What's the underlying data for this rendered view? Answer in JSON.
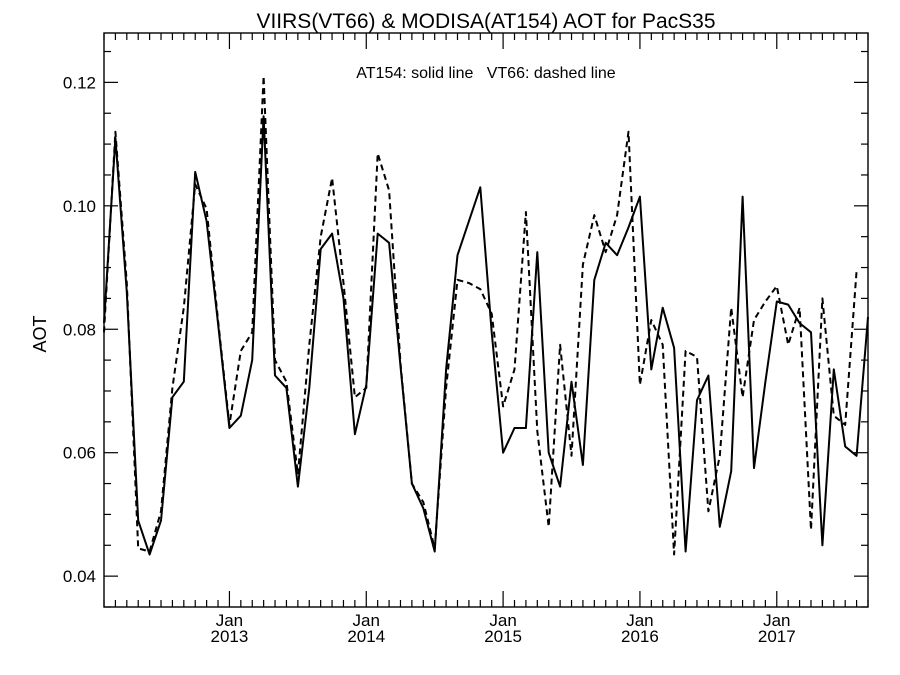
{
  "chart_data": {
    "type": "line",
    "title": "VIIRS(VT66) & MODISA(AT154)  AOT for PacS35",
    "annotation": "AT154: solid line   VT66: dashed line",
    "ylabel": "AOT",
    "xlabel": "",
    "ylim": [
      0.035,
      0.128
    ],
    "xlim": [
      "2012-02-01",
      "2017-09-01"
    ],
    "yticks": [
      0.04,
      0.06,
      0.08,
      0.1,
      0.12
    ],
    "ytick_labels": [
      "0.04",
      "0.06",
      "0.08",
      "0.10",
      "0.12"
    ],
    "xticks": [
      {
        "month": "Jan",
        "year": "2013",
        "date": "2013-01-01"
      },
      {
        "month": "Jan",
        "year": "2014",
        "date": "2014-01-01"
      },
      {
        "month": "Jan",
        "year": "2015",
        "date": "2015-01-01"
      },
      {
        "month": "Jan",
        "year": "2016",
        "date": "2016-01-01"
      },
      {
        "month": "Jan",
        "year": "2017",
        "date": "2017-01-01"
      }
    ],
    "grid": false,
    "series": [
      {
        "name": "AT154",
        "style": "solid",
        "color": "#000000",
        "points": [
          [
            "2012-02-01",
            0.081
          ],
          [
            "2012-03-01",
            0.111
          ],
          [
            "2012-04-01",
            0.086
          ],
          [
            "2012-05-01",
            0.049
          ],
          [
            "2012-06-01",
            0.0435
          ],
          [
            "2012-07-01",
            0.049
          ],
          [
            "2012-08-01",
            0.069
          ],
          [
            "2012-09-01",
            0.0715
          ],
          [
            "2012-10-01",
            0.1055
          ],
          [
            "2012-11-01",
            0.0975
          ],
          [
            "2012-12-01",
            0.081
          ],
          [
            "2013-01-01",
            0.064
          ],
          [
            "2013-02-01",
            0.066
          ],
          [
            "2013-03-01",
            0.075
          ],
          [
            "2013-04-01",
            0.1145
          ],
          [
            "2013-05-01",
            0.0725
          ],
          [
            "2013-06-01",
            0.0705
          ],
          [
            "2013-07-01",
            0.0545
          ],
          [
            "2013-08-01",
            0.0705
          ],
          [
            "2013-09-01",
            0.093
          ],
          [
            "2013-10-01",
            0.0955
          ],
          [
            "2013-11-01",
            0.085
          ],
          [
            "2013-12-01",
            0.063
          ],
          [
            "2014-01-01",
            0.071
          ],
          [
            "2014-02-01",
            0.0955
          ],
          [
            "2014-03-01",
            0.094
          ],
          [
            "2014-04-01",
            0.074
          ],
          [
            "2014-05-01",
            0.055
          ],
          [
            "2014-06-01",
            0.051
          ],
          [
            "2014-07-01",
            0.044
          ],
          [
            "2014-08-01",
            0.0735
          ],
          [
            "2014-09-01",
            0.092
          ],
          [
            "2014-10-01",
            0.0975
          ],
          [
            "2014-11-01",
            0.103
          ],
          [
            "2014-12-01",
            0.0795
          ],
          [
            "2015-01-01",
            0.06
          ],
          [
            "2015-02-01",
            0.064
          ],
          [
            "2015-03-01",
            0.064
          ],
          [
            "2015-04-01",
            0.0925
          ],
          [
            "2015-05-01",
            0.06
          ],
          [
            "2015-06-01",
            0.0545
          ],
          [
            "2015-07-01",
            0.0715
          ],
          [
            "2015-08-01",
            0.058
          ],
          [
            "2015-09-01",
            0.088
          ],
          [
            "2015-10-01",
            0.094
          ],
          [
            "2015-11-01",
            0.092
          ],
          [
            "2015-12-01",
            0.0965
          ],
          [
            "2016-01-01",
            0.1015
          ],
          [
            "2016-02-01",
            0.0735
          ],
          [
            "2016-03-01",
            0.0835
          ],
          [
            "2016-04-01",
            0.077
          ],
          [
            "2016-05-01",
            0.044
          ],
          [
            "2016-06-01",
            0.0685
          ],
          [
            "2016-07-01",
            0.0725
          ],
          [
            "2016-08-01",
            0.048
          ],
          [
            "2016-09-01",
            0.057
          ],
          [
            "2016-10-01",
            0.1015
          ],
          [
            "2016-11-01",
            0.0575
          ],
          [
            "2016-12-01",
            0.0715
          ],
          [
            "2017-01-01",
            0.0845
          ],
          [
            "2017-02-01",
            0.084
          ],
          [
            "2017-03-01",
            0.081
          ],
          [
            "2017-04-01",
            0.0795
          ],
          [
            "2017-05-01",
            0.045
          ],
          [
            "2017-06-01",
            0.0735
          ],
          [
            "2017-07-01",
            0.061
          ],
          [
            "2017-08-01",
            0.0595
          ],
          [
            "2017-09-01",
            0.082
          ]
        ]
      },
      {
        "name": "VT66",
        "style": "dashed",
        "color": "#000000",
        "points": [
          [
            "2012-02-01",
            0.0795
          ],
          [
            "2012-03-01",
            0.112
          ],
          [
            "2012-04-01",
            0.0875
          ],
          [
            "2012-05-01",
            0.0445
          ],
          [
            "2012-06-01",
            0.044
          ],
          [
            "2012-07-01",
            0.0505
          ],
          [
            "2012-08-01",
            0.0705
          ],
          [
            "2012-09-01",
            0.0835
          ],
          [
            "2012-10-01",
            0.1035
          ],
          [
            "2012-11-01",
            0.0995
          ],
          [
            "2012-12-01",
            0.0815
          ],
          [
            "2013-01-01",
            0.0645
          ],
          [
            "2013-02-01",
            0.0765
          ],
          [
            "2013-03-01",
            0.0795
          ],
          [
            "2013-04-01",
            0.121
          ],
          [
            "2013-05-01",
            0.075
          ],
          [
            "2013-06-01",
            0.0715
          ],
          [
            "2013-07-01",
            0.0565
          ],
          [
            "2013-08-01",
            0.0775
          ],
          [
            "2013-09-01",
            0.095
          ],
          [
            "2013-10-01",
            0.1045
          ],
          [
            "2013-11-01",
            0.0875
          ],
          [
            "2013-12-01",
            0.069
          ],
          [
            "2014-01-01",
            0.0705
          ],
          [
            "2014-02-01",
            0.1085
          ],
          [
            "2014-03-01",
            0.1025
          ],
          [
            "2014-04-01",
            0.0745
          ],
          [
            "2014-05-01",
            0.055
          ],
          [
            "2014-06-01",
            0.052
          ],
          [
            "2014-07-01",
            0.0445
          ],
          [
            "2014-08-01",
            0.0705
          ],
          [
            "2014-09-01",
            0.088
          ],
          [
            "2014-10-01",
            0.0875
          ],
          [
            "2014-11-01",
            0.0865
          ],
          [
            "2014-12-01",
            0.0825
          ],
          [
            "2015-01-01",
            0.0675
          ],
          [
            "2015-02-01",
            0.0735
          ],
          [
            "2015-03-01",
            0.099
          ],
          [
            "2015-04-01",
            0.0635
          ],
          [
            "2015-05-01",
            0.048
          ],
          [
            "2015-06-01",
            0.0775
          ],
          [
            "2015-07-01",
            0.0595
          ],
          [
            "2015-08-01",
            0.0905
          ],
          [
            "2015-09-01",
            0.0985
          ],
          [
            "2015-10-01",
            0.0925
          ],
          [
            "2015-11-01",
            0.0985
          ],
          [
            "2015-12-01",
            0.112
          ],
          [
            "2016-01-01",
            0.071
          ],
          [
            "2016-02-01",
            0.0815
          ],
          [
            "2016-03-01",
            0.0775
          ],
          [
            "2016-04-01",
            0.0435
          ],
          [
            "2016-05-01",
            0.0765
          ],
          [
            "2016-06-01",
            0.0755
          ],
          [
            "2016-07-01",
            0.0505
          ],
          [
            "2016-08-01",
            0.0595
          ],
          [
            "2016-09-01",
            0.0835
          ],
          [
            "2016-10-01",
            0.069
          ],
          [
            "2016-11-01",
            0.0815
          ],
          [
            "2016-12-01",
            0.0845
          ],
          [
            "2017-01-01",
            0.087
          ],
          [
            "2017-02-01",
            0.0775
          ],
          [
            "2017-03-01",
            0.0835
          ],
          [
            "2017-04-01",
            0.0475
          ],
          [
            "2017-05-01",
            0.085
          ],
          [
            "2017-06-01",
            0.066
          ],
          [
            "2017-07-01",
            0.0645
          ],
          [
            "2017-08-01",
            0.0895
          ]
        ]
      }
    ]
  }
}
